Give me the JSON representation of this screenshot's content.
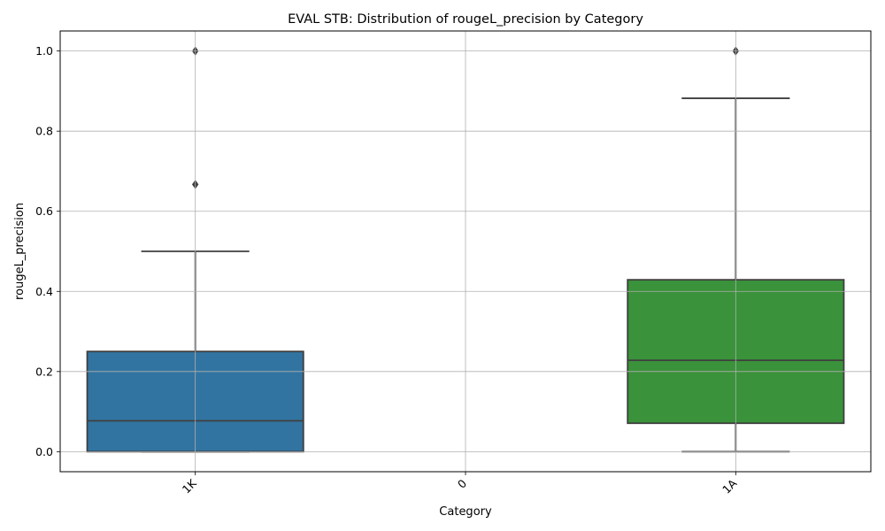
{
  "chart_data": {
    "type": "box",
    "title": "EVAL STB: Distribution of rougeL_precision by Category",
    "xlabel": "Category",
    "ylabel": "rougeL_precision",
    "ylim": [
      -0.05,
      1.05
    ],
    "yticks": [
      0.0,
      0.2,
      0.4,
      0.6,
      0.8,
      1.0
    ],
    "ytick_labels": [
      "0.0",
      "0.2",
      "0.4",
      "0.6",
      "0.8",
      "1.0"
    ],
    "grid": true,
    "categories": [
      "1K",
      "0",
      "1A"
    ],
    "boxes": [
      {
        "category": "1K",
        "q1": 0.0,
        "median": 0.077,
        "q3": 0.25,
        "whisker_low": 0.0,
        "whisker_high": 0.5,
        "outliers": [
          0.667,
          1.0
        ],
        "color": "#3274a1"
      },
      {
        "category": "0",
        "empty": true
      },
      {
        "category": "1A",
        "q1": 0.071,
        "median": 0.228,
        "q3": 0.429,
        "whisker_low": 0.0,
        "whisker_high": 0.882,
        "outliers": [
          1.0
        ],
        "color": "#3a923a"
      }
    ]
  }
}
